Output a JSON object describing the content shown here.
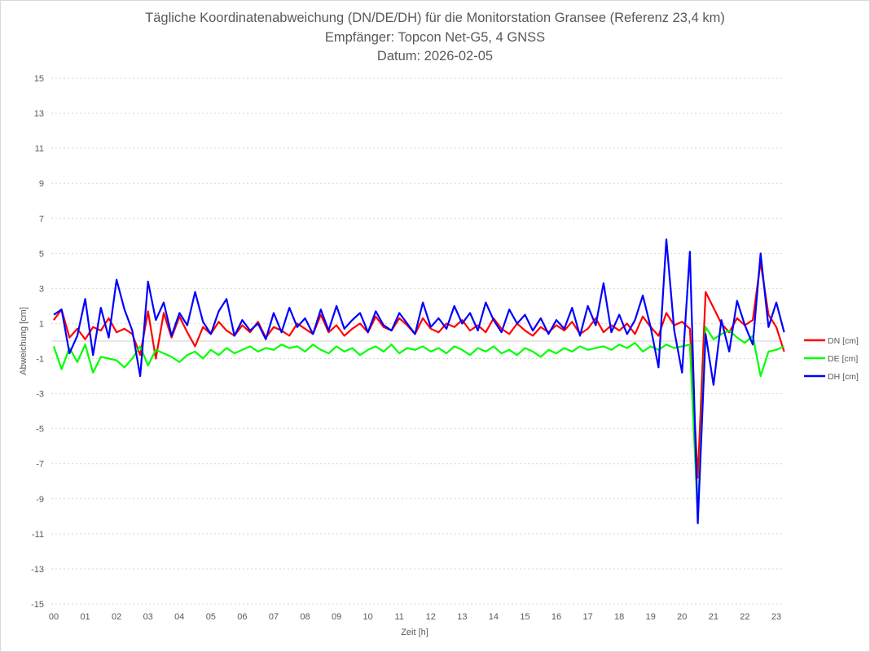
{
  "chart_data": {
    "type": "line",
    "title": "Tägliche Koordinatenabweichung (DN/DE/DH) für die Monitorstation Gransee (Referenz 23,4 km)",
    "subtitle": [
      "Empfänger: Topcon Net-G5, 4 GNSS",
      "Datum: 2026-02-05"
    ],
    "xlabel": "Zeit [h]",
    "ylabel": "Abweichung [cm]",
    "xlim": [
      0,
      23.25
    ],
    "ylim": [
      -15,
      15
    ],
    "x_tick_labels": [
      "00",
      "01",
      "02",
      "03",
      "04",
      "05",
      "06",
      "07",
      "08",
      "09",
      "10",
      "11",
      "12",
      "13",
      "14",
      "15",
      "16",
      "17",
      "18",
      "19",
      "20",
      "21",
      "22",
      "23"
    ],
    "y_ticks": [
      15,
      13,
      11,
      9,
      7,
      5,
      3,
      1,
      -1,
      -3,
      -5,
      -7,
      -9,
      -11,
      -13,
      -15
    ],
    "grid": "horizontal dotted",
    "legend_position": "right",
    "x": [
      0,
      0.25,
      0.5,
      0.75,
      1,
      1.25,
      1.5,
      1.75,
      2,
      2.25,
      2.5,
      2.75,
      3,
      3.25,
      3.5,
      3.75,
      4,
      4.25,
      4.5,
      4.75,
      5,
      5.25,
      5.5,
      5.75,
      6,
      6.25,
      6.5,
      6.75,
      7,
      7.25,
      7.5,
      7.75,
      8,
      8.25,
      8.5,
      8.75,
      9,
      9.25,
      9.5,
      9.75,
      10,
      10.25,
      10.5,
      10.75,
      11,
      11.25,
      11.5,
      11.75,
      12,
      12.25,
      12.5,
      12.75,
      13,
      13.25,
      13.5,
      13.75,
      14,
      14.25,
      14.5,
      14.75,
      15,
      15.25,
      15.5,
      15.75,
      16,
      16.25,
      16.5,
      16.75,
      17,
      17.25,
      17.5,
      17.75,
      18,
      18.25,
      18.5,
      18.75,
      19,
      19.25,
      19.5,
      19.75,
      20,
      20.25,
      20.5,
      20.75,
      21,
      21.25,
      21.5,
      21.75,
      22,
      22.25,
      22.5,
      22.75,
      23,
      23.25
    ],
    "series": [
      {
        "name": "DN [cm]",
        "color": "#ff0000",
        "values": [
          1.2,
          1.8,
          0.2,
          0.7,
          0.1,
          0.8,
          0.6,
          1.3,
          0.5,
          0.7,
          0.4,
          -0.8,
          1.7,
          -1.0,
          1.6,
          0.2,
          1.4,
          0.5,
          -0.3,
          0.8,
          0.4,
          1.1,
          0.6,
          0.3,
          0.9,
          0.5,
          1.1,
          0.2,
          0.8,
          0.6,
          0.3,
          1.0,
          0.7,
          0.4,
          1.5,
          0.5,
          0.9,
          0.3,
          0.7,
          1.0,
          0.5,
          1.4,
          0.8,
          0.6,
          1.3,
          0.9,
          0.4,
          1.3,
          0.7,
          0.5,
          1.0,
          0.8,
          1.2,
          0.6,
          0.9,
          0.5,
          1.3,
          0.7,
          0.4,
          1.0,
          0.6,
          0.3,
          0.8,
          0.5,
          0.9,
          0.6,
          1.1,
          0.4,
          0.7,
          1.3,
          0.5,
          0.9,
          0.6,
          1.0,
          0.4,
          1.4,
          0.8,
          0.3,
          1.6,
          0.9,
          1.1,
          0.7,
          -7.8,
          2.8,
          1.9,
          1.0,
          0.5,
          1.3,
          0.9,
          1.2,
          4.5,
          1.5,
          0.8,
          -0.6
        ]
      },
      {
        "name": "DE [cm]",
        "color": "#00ff00",
        "values": [
          -0.3,
          -1.6,
          -0.4,
          -1.2,
          -0.2,
          -1.8,
          -0.9,
          -1.0,
          -1.1,
          -1.5,
          -1.0,
          -0.3,
          -1.4,
          -0.5,
          -0.7,
          -0.9,
          -1.2,
          -0.8,
          -0.6,
          -1.0,
          -0.5,
          -0.8,
          -0.4,
          -0.7,
          -0.5,
          -0.3,
          -0.6,
          -0.4,
          -0.5,
          -0.2,
          -0.4,
          -0.3,
          -0.6,
          -0.2,
          -0.5,
          -0.7,
          -0.3,
          -0.6,
          -0.4,
          -0.8,
          -0.5,
          -0.3,
          -0.6,
          -0.2,
          -0.7,
          -0.4,
          -0.5,
          -0.3,
          -0.6,
          -0.4,
          -0.7,
          -0.3,
          -0.5,
          -0.8,
          -0.4,
          -0.6,
          -0.3,
          -0.7,
          -0.5,
          -0.8,
          -0.4,
          -0.6,
          -0.9,
          -0.5,
          -0.7,
          -0.4,
          -0.6,
          -0.3,
          -0.5,
          -0.4,
          -0.3,
          -0.5,
          -0.2,
          -0.4,
          -0.1,
          -0.6,
          -0.3,
          -0.5,
          -0.2,
          -0.4,
          -0.3,
          -0.2,
          -10.0,
          0.8,
          0.1,
          0.4,
          0.6,
          0.2,
          -0.1,
          0.3,
          -2.0,
          -0.6,
          -0.5,
          -0.3
        ]
      },
      {
        "name": "DH [cm]",
        "color": "#0000ff",
        "values": [
          1.5,
          1.8,
          -0.7,
          0.3,
          2.4,
          -0.8,
          1.9,
          0.2,
          3.5,
          1.8,
          0.6,
          -2.0,
          3.4,
          1.2,
          2.2,
          0.3,
          1.6,
          0.9,
          2.8,
          1.1,
          0.4,
          1.7,
          2.4,
          0.3,
          1.2,
          0.6,
          1.0,
          0.1,
          1.6,
          0.5,
          1.9,
          0.8,
          1.3,
          0.4,
          1.8,
          0.6,
          2.0,
          0.7,
          1.2,
          1.6,
          0.5,
          1.7,
          0.9,
          0.6,
          1.6,
          1.0,
          0.4,
          2.2,
          0.8,
          1.3,
          0.7,
          2.0,
          1.0,
          1.6,
          0.6,
          2.2,
          1.2,
          0.5,
          1.8,
          1.0,
          1.5,
          0.6,
          1.3,
          0.4,
          1.2,
          0.7,
          1.9,
          0.3,
          2.0,
          0.9,
          3.3,
          0.5,
          1.5,
          0.4,
          1.2,
          2.6,
          0.8,
          -1.5,
          5.8,
          0.6,
          -1.8,
          5.1,
          -10.4,
          0.4,
          -2.5,
          1.2,
          -0.6,
          2.3,
          0.9,
          -0.2,
          5.0,
          0.8,
          2.2,
          0.5
        ]
      }
    ]
  }
}
